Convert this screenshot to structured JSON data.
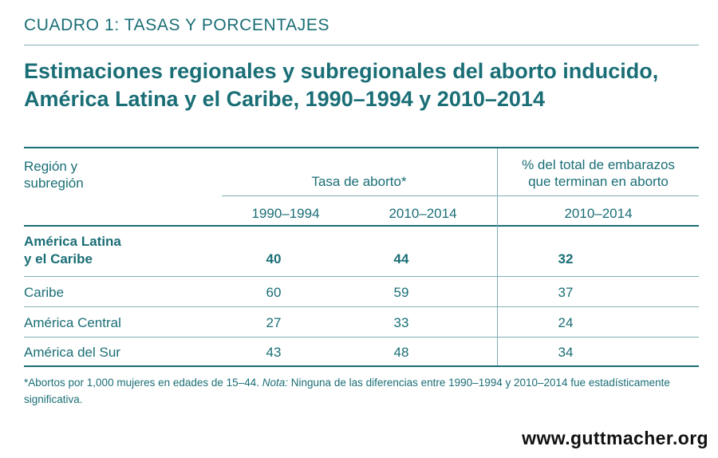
{
  "header": {
    "kicker": "CUADRO 1: TASAS Y PORCENTAJES",
    "title": "Estimaciones regionales y subregionales del aborto inducido, América Latina y el Caribe, 1990–1994 y 2010–2014"
  },
  "table": {
    "col_region_line1": "Región y",
    "col_region_line2": "subregión",
    "group_rate": "Tasa de aborto*",
    "group_pct_line1": "% del total de embarazos",
    "group_pct_line2": "que terminan en aborto",
    "period_1": "1990–1994",
    "period_2": "2010–2014",
    "period_3": "2010–2014",
    "rows": [
      {
        "region_line1": "América Latina",
        "region_line2": "y el Caribe",
        "rate_1990": "40",
        "rate_2010": "44",
        "pct_2010": "32"
      },
      {
        "region_line1": "Caribe",
        "rate_1990": "60",
        "rate_2010": "59",
        "pct_2010": "37"
      },
      {
        "region_line1": "América Central",
        "rate_1990": "27",
        "rate_2010": "33",
        "pct_2010": "24"
      },
      {
        "region_line1": "América del Sur",
        "rate_1990": "43",
        "rate_2010": "48",
        "pct_2010": "34"
      }
    ]
  },
  "footnote": {
    "main": "*Abortos por 1,000 mujeres en edades de 15–44.",
    "note_label": "Nota:",
    "note_text": "Ninguna de las diferencias entre 1990–1994 y 2010–2014 fue estadísticamente significativa."
  },
  "brand": {
    "url": "www.guttmacher.org"
  }
}
